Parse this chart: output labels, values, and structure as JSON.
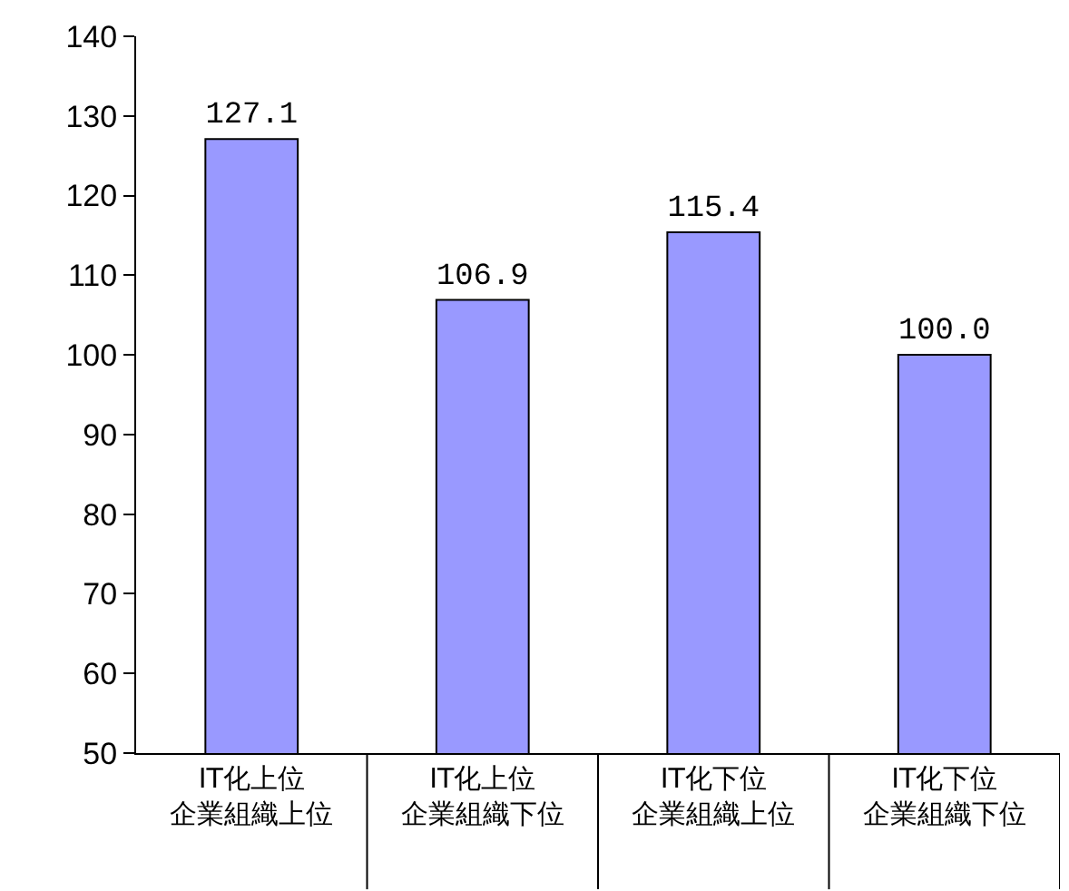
{
  "chart_data": {
    "type": "bar",
    "categories": [
      "IT化上位企業組織上位",
      "IT化上位企業組織下位",
      "IT化下位企業組織上位",
      "IT化下位企業組織下位"
    ],
    "values": [
      127.1,
      106.9,
      115.4,
      100.0
    ],
    "value_labels": [
      "127.1",
      "106.9",
      "115.4",
      "100.0"
    ],
    "color": "#9999ff",
    "ylim": [
      50,
      140
    ],
    "yticks": [
      50,
      60,
      70,
      80,
      90,
      100,
      110,
      120,
      130,
      140
    ],
    "legend": false
  }
}
